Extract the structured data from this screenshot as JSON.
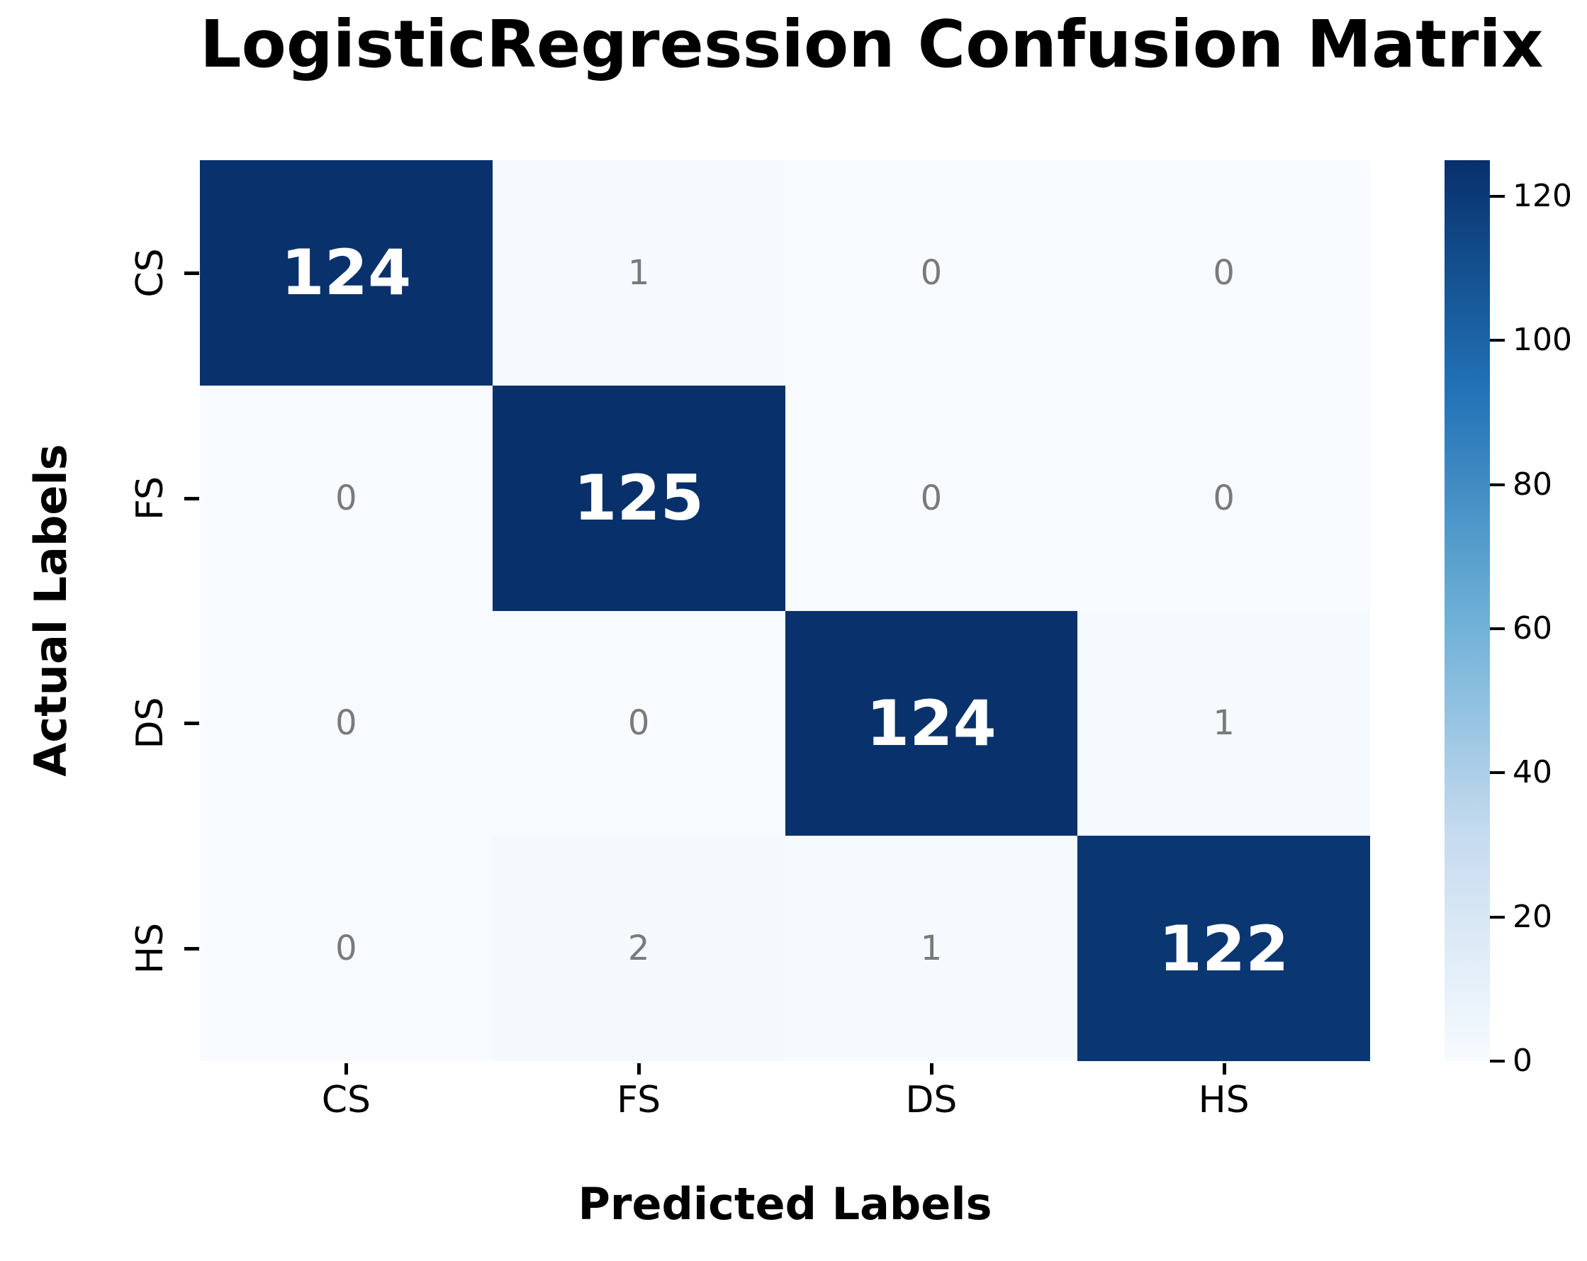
{
  "figure": {
    "title": "LogisticRegression Confusion Matrix",
    "xlabel": "Predicted Labels",
    "ylabel": "Actual Labels"
  },
  "chart_data": {
    "type": "heatmap",
    "title": "LogisticRegression Confusion Matrix",
    "xlabel": "Predicted Labels",
    "ylabel": "Actual Labels",
    "x_categories": [
      "CS",
      "FS",
      "DS",
      "HS"
    ],
    "y_categories": [
      "CS",
      "FS",
      "DS",
      "HS"
    ],
    "matrix": [
      [
        124,
        1,
        0,
        0
      ],
      [
        0,
        125,
        0,
        0
      ],
      [
        0,
        0,
        124,
        1
      ],
      [
        0,
        2,
        1,
        122
      ]
    ],
    "vmin": 0,
    "vmax": 125,
    "colormap": "Blues",
    "grid": false,
    "annotated": true,
    "legend_position": "none",
    "colorbar": {
      "position": "right",
      "ticks": [
        0,
        20,
        40,
        60,
        80,
        100,
        120
      ]
    }
  },
  "style": {
    "background": "#ffffff",
    "dark_cell_color": "#0c356b",
    "light_cell_color": "#f7fbff",
    "diag_text_color": "#ffffff",
    "offdiag_text_color": "#7a7a7a",
    "tick_color": "#000000"
  }
}
